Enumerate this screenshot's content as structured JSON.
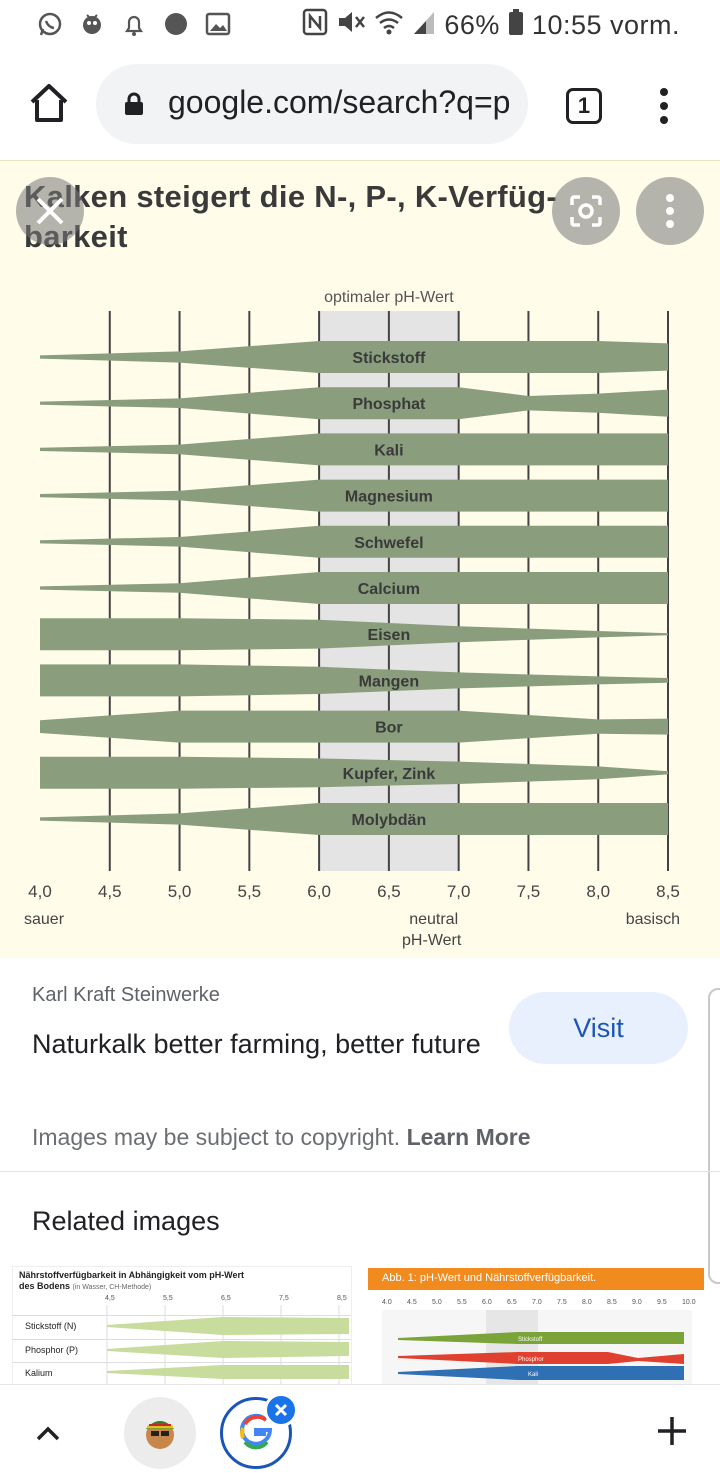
{
  "status_bar": {
    "battery": "66%",
    "time": "10:55 vorm.",
    "left_icons": [
      "whatsapp-icon",
      "game-icon",
      "alarm-icon",
      "dot-icon",
      "image-icon"
    ],
    "right_icons": [
      "nfc-icon",
      "mute-icon",
      "wifi-icon",
      "signal-icon",
      "battery-icon"
    ]
  },
  "browser": {
    "url": "google.com/search?q=p",
    "tab_count": "1"
  },
  "image_viewer": {
    "chart_data": {
      "type": "bar",
      "title": "Kalken steigert die N-, P-, K-Verfüg-barkeit",
      "title_line1": "Kalken steigert die N-, P-, K-Verfüg-",
      "title_line2": "barkeit",
      "optimal_label": "optimaler pH-Wert",
      "optimal_range": [
        6.0,
        7.0
      ],
      "xlim": [
        4.0,
        8.5
      ],
      "x_ticks": [
        "4,0",
        "4,5",
        "5,0",
        "5,5",
        "6,0",
        "6,5",
        "7,0",
        "7,5",
        "8,0",
        "8,5"
      ],
      "x_tick_values": [
        4.0,
        4.5,
        5.0,
        5.5,
        6.0,
        6.5,
        7.0,
        7.5,
        8.0,
        8.5
      ],
      "bottom_labels": {
        "left": "sauer",
        "center": "neutral",
        "center_sub": "pH-Wert",
        "right": "basisch"
      },
      "color": "#8a9e7e",
      "series": [
        {
          "name": "Stickstoff",
          "widths": [
            [
              4.0,
              0.1
            ],
            [
              5.0,
              0.35
            ],
            [
              6.0,
              1.0
            ],
            [
              7.0,
              1.0
            ],
            [
              8.0,
              1.0
            ],
            [
              8.5,
              0.85
            ]
          ]
        },
        {
          "name": "Phosphat",
          "widths": [
            [
              4.0,
              0.1
            ],
            [
              5.0,
              0.3
            ],
            [
              6.0,
              1.0
            ],
            [
              7.0,
              1.0
            ],
            [
              7.5,
              0.45
            ],
            [
              8.0,
              0.6
            ],
            [
              8.5,
              0.85
            ]
          ]
        },
        {
          "name": "Kali",
          "widths": [
            [
              4.0,
              0.1
            ],
            [
              5.0,
              0.3
            ],
            [
              6.0,
              1.0
            ],
            [
              7.0,
              1.0
            ],
            [
              8.0,
              1.0
            ],
            [
              8.5,
              1.0
            ]
          ]
        },
        {
          "name": "Magnesium",
          "widths": [
            [
              4.0,
              0.1
            ],
            [
              5.0,
              0.3
            ],
            [
              6.0,
              1.0
            ],
            [
              7.0,
              1.0
            ],
            [
              8.0,
              1.0
            ],
            [
              8.5,
              1.0
            ]
          ]
        },
        {
          "name": "Schwefel",
          "widths": [
            [
              4.0,
              0.1
            ],
            [
              5.0,
              0.3
            ],
            [
              6.0,
              1.0
            ],
            [
              7.0,
              1.0
            ],
            [
              8.0,
              1.0
            ],
            [
              8.5,
              1.0
            ]
          ]
        },
        {
          "name": "Calcium",
          "widths": [
            [
              4.0,
              0.1
            ],
            [
              5.0,
              0.3
            ],
            [
              6.0,
              1.0
            ],
            [
              7.0,
              1.0
            ],
            [
              8.0,
              1.0
            ],
            [
              8.5,
              1.0
            ]
          ]
        },
        {
          "name": "Eisen",
          "widths": [
            [
              4.0,
              1.0
            ],
            [
              5.0,
              1.0
            ],
            [
              6.0,
              0.9
            ],
            [
              7.0,
              0.5
            ],
            [
              8.0,
              0.2
            ],
            [
              8.5,
              0.05
            ]
          ]
        },
        {
          "name": "Mangen",
          "widths": [
            [
              4.0,
              1.0
            ],
            [
              5.0,
              1.0
            ],
            [
              6.0,
              0.85
            ],
            [
              7.0,
              0.5
            ],
            [
              8.0,
              0.25
            ],
            [
              8.5,
              0.15
            ]
          ]
        },
        {
          "name": "Bor",
          "widths": [
            [
              4.0,
              0.4
            ],
            [
              5.0,
              1.0
            ],
            [
              6.0,
              1.0
            ],
            [
              7.0,
              1.0
            ],
            [
              8.0,
              0.45
            ],
            [
              8.5,
              0.5
            ]
          ]
        },
        {
          "name": "Kupfer, Zink",
          "widths": [
            [
              4.0,
              1.0
            ],
            [
              5.0,
              1.0
            ],
            [
              6.0,
              0.9
            ],
            [
              7.0,
              0.7
            ],
            [
              8.0,
              0.4
            ],
            [
              8.5,
              0.1
            ]
          ]
        },
        {
          "name": "Molybdän",
          "widths": [
            [
              4.0,
              0.1
            ],
            [
              5.0,
              0.35
            ],
            [
              6.0,
              1.0
            ],
            [
              7.0,
              1.0
            ],
            [
              8.0,
              1.0
            ],
            [
              8.5,
              1.0
            ]
          ]
        }
      ]
    }
  },
  "result": {
    "source": "Karl Kraft Steinwerke",
    "caption": "Naturkalk better farming, better future",
    "visit_label": "Visit",
    "copyright_text": "Images may be subject to copyright.",
    "learn_more_label": "Learn More"
  },
  "related": {
    "heading": "Related images",
    "thumb1": {
      "title": "Nährstoffverfügbarkeit in Abhängigkeit vom pH-Wert des Bodens",
      "subtitle": "(in Wasser, CH-Methode)",
      "scale": [
        "4,5",
        "5,5",
        "6,5",
        "7,5",
        "8,5"
      ],
      "rows": [
        "Stickstoff (N)",
        "Phosphor (P)",
        "Kalium"
      ],
      "color": "#c8dc9e"
    },
    "thumb2": {
      "title": "Abb. 1: pH-Wert und Nährstoffverfügbarkeit.",
      "scale": [
        "4.0",
        "4.5",
        "5.0",
        "5.5",
        "6.0",
        "6.5",
        "7.0",
        "7.5",
        "8.0",
        "8.5",
        "9.0",
        "9.5",
        "10.0"
      ],
      "bars": [
        {
          "name": "Stickstoff",
          "color": "#7aa33a"
        },
        {
          "name": "Phosphor",
          "color": "#e0402f"
        },
        {
          "name": "Kali",
          "color": "#2f6fb4"
        }
      ]
    }
  },
  "bottom_bar": {
    "icons": [
      "chevron-up-icon",
      "avatar",
      "google-icon",
      "plus-icon"
    ]
  }
}
